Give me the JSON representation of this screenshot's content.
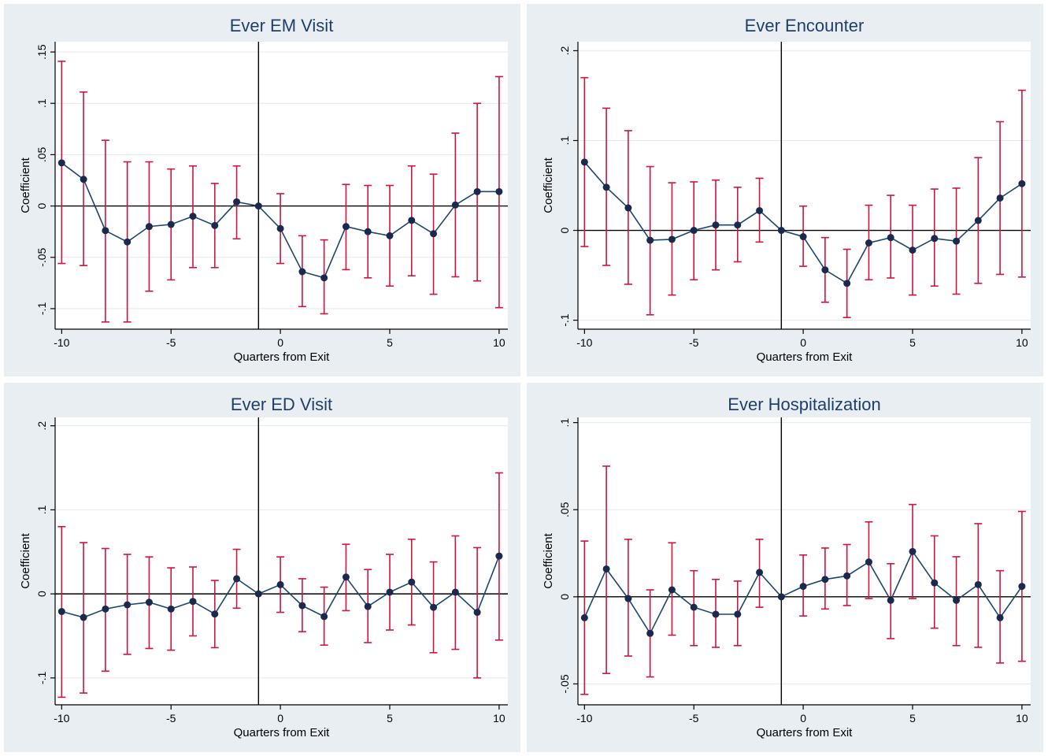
{
  "colors": {
    "panel_background": "#e9eef3",
    "plot_background": "#ffffff",
    "title_color": "#1f3f6b",
    "ci_color": "#d0143f",
    "line_color": "#1a476f",
    "marker_color": "#1a2a4f",
    "grid_color": "#e4e9ee"
  },
  "chart_data": [
    {
      "type": "line",
      "title": "Ever EM Visit",
      "xlabel": "Quarters from Exit",
      "ylabel": "Coefficient",
      "x": [
        -10,
        -9,
        -8,
        -7,
        -6,
        -5,
        -4,
        -3,
        -2,
        -1,
        0,
        1,
        2,
        3,
        4,
        5,
        6,
        7,
        8,
        9,
        10
      ],
      "values": [
        0.042,
        0.026,
        -0.024,
        -0.035,
        -0.02,
        -0.018,
        -0.01,
        -0.019,
        0.004,
        0.0,
        -0.022,
        -0.064,
        -0.07,
        -0.02,
        -0.025,
        -0.029,
        -0.014,
        -0.027,
        0.001,
        0.014,
        0.014
      ],
      "ci_low": [
        -0.056,
        -0.058,
        -0.113,
        -0.113,
        -0.083,
        -0.072,
        -0.06,
        -0.06,
        -0.032,
        0.0,
        -0.056,
        -0.098,
        -0.105,
        -0.062,
        -0.07,
        -0.078,
        -0.068,
        -0.086,
        -0.069,
        -0.073,
        -0.099
      ],
      "ci_high": [
        0.141,
        0.111,
        0.064,
        0.043,
        0.043,
        0.036,
        0.039,
        0.022,
        0.039,
        0.0,
        0.012,
        -0.029,
        -0.033,
        0.021,
        0.02,
        0.02,
        0.039,
        0.031,
        0.071,
        0.1,
        0.126
      ],
      "ylim": [
        -0.12,
        0.16
      ],
      "yticks": [
        0.15,
        0.1,
        0.05,
        0,
        -0.05,
        -0.1
      ],
      "ytick_labels": [
        ".15",
        ".1",
        ".05",
        "0",
        "-.05",
        "-.1"
      ],
      "xticks": [
        -10,
        -5,
        0,
        5,
        10
      ],
      "xtick_labels": [
        "-10",
        "-5",
        "0",
        "5",
        "10"
      ],
      "xlim": [
        -10.3,
        10.4
      ],
      "vline": -1,
      "hline": 0
    },
    {
      "type": "line",
      "title": "Ever Encounter",
      "xlabel": "Quarters from Exit",
      "ylabel": "Coefficient",
      "x": [
        -10,
        -9,
        -8,
        -7,
        -6,
        -5,
        -4,
        -3,
        -2,
        -1,
        0,
        1,
        2,
        3,
        4,
        5,
        6,
        7,
        8,
        9,
        10
      ],
      "values": [
        0.076,
        0.048,
        0.025,
        -0.011,
        -0.01,
        0.0,
        0.006,
        0.006,
        0.022,
        0.0,
        -0.007,
        -0.044,
        -0.059,
        -0.014,
        -0.008,
        -0.022,
        -0.009,
        -0.012,
        0.011,
        0.036,
        0.052
      ],
      "ci_low": [
        -0.018,
        -0.039,
        -0.06,
        -0.094,
        -0.072,
        -0.055,
        -0.044,
        -0.035,
        -0.013,
        0.0,
        -0.04,
        -0.08,
        -0.097,
        -0.055,
        -0.053,
        -0.072,
        -0.062,
        -0.071,
        -0.059,
        -0.049,
        -0.052
      ],
      "ci_high": [
        0.17,
        0.136,
        0.111,
        0.071,
        0.053,
        0.054,
        0.056,
        0.048,
        0.058,
        0.0,
        0.027,
        -0.008,
        -0.021,
        0.028,
        0.039,
        0.028,
        0.046,
        0.047,
        0.081,
        0.121,
        0.156
      ],
      "ylim": [
        -0.11,
        0.21
      ],
      "yticks": [
        0.2,
        0.1,
        0,
        -0.1
      ],
      "ytick_labels": [
        ".2",
        ".1",
        "0",
        "-.1"
      ],
      "xticks": [
        -10,
        -5,
        0,
        5,
        10
      ],
      "xtick_labels": [
        "-10",
        "-5",
        "0",
        "5",
        "10"
      ],
      "xlim": [
        -10.3,
        10.4
      ],
      "vline": -1,
      "hline": 0
    },
    {
      "type": "line",
      "title": "Ever ED Visit",
      "xlabel": "Quarters from Exit",
      "ylabel": "Coefficient",
      "x": [
        -10,
        -9,
        -8,
        -7,
        -6,
        -5,
        -4,
        -3,
        -2,
        -1,
        0,
        1,
        2,
        3,
        4,
        5,
        6,
        7,
        8,
        9,
        10
      ],
      "values": [
        -0.021,
        -0.028,
        -0.018,
        -0.013,
        -0.01,
        -0.018,
        -0.009,
        -0.024,
        0.018,
        0.0,
        0.011,
        -0.014,
        -0.027,
        0.02,
        -0.015,
        0.002,
        0.014,
        -0.016,
        0.002,
        -0.022,
        0.045
      ],
      "ci_low": [
        -0.123,
        -0.118,
        -0.092,
        -0.072,
        -0.065,
        -0.067,
        -0.05,
        -0.064,
        -0.017,
        0.0,
        -0.022,
        -0.045,
        -0.061,
        -0.02,
        -0.058,
        -0.043,
        -0.037,
        -0.07,
        -0.066,
        -0.1,
        -0.055
      ],
      "ci_high": [
        0.08,
        0.061,
        0.054,
        0.047,
        0.044,
        0.031,
        0.032,
        0.016,
        0.053,
        0.0,
        0.044,
        0.018,
        0.008,
        0.059,
        0.029,
        0.047,
        0.065,
        0.038,
        0.069,
        0.055,
        0.144
      ],
      "ylim": [
        -0.132,
        0.21
      ],
      "yticks": [
        0.2,
        0.1,
        0,
        -0.1
      ],
      "ytick_labels": [
        ".2",
        ".1",
        "0",
        "-.1"
      ],
      "xticks": [
        -10,
        -5,
        0,
        5,
        10
      ],
      "xtick_labels": [
        "-10",
        "-5",
        "0",
        "5",
        "10"
      ],
      "xlim": [
        -10.3,
        10.4
      ],
      "vline": -1,
      "hline": 0
    },
    {
      "type": "line",
      "title": "Ever Hospitalization",
      "xlabel": "Quarters from Exit",
      "ylabel": "Coefficient",
      "x": [
        -10,
        -9,
        -8,
        -7,
        -6,
        -5,
        -4,
        -3,
        -2,
        -1,
        0,
        1,
        2,
        3,
        4,
        5,
        6,
        7,
        8,
        9,
        10
      ],
      "values": [
        -0.012,
        0.016,
        -0.001,
        -0.021,
        0.004,
        -0.006,
        -0.01,
        -0.01,
        0.014,
        0.0,
        0.006,
        0.01,
        0.012,
        0.02,
        -0.002,
        0.026,
        0.008,
        -0.002,
        0.007,
        -0.012,
        0.006
      ],
      "ci_low": [
        -0.056,
        -0.044,
        -0.034,
        -0.046,
        -0.022,
        -0.028,
        -0.029,
        -0.028,
        -0.006,
        0.0,
        -0.011,
        -0.007,
        -0.005,
        -0.001,
        -0.024,
        -0.001,
        -0.018,
        -0.028,
        -0.029,
        -0.038,
        -0.037
      ],
      "ci_high": [
        0.032,
        0.075,
        0.033,
        0.004,
        0.031,
        0.015,
        0.01,
        0.009,
        0.033,
        0.0,
        0.024,
        0.028,
        0.03,
        0.043,
        0.019,
        0.053,
        0.035,
        0.023,
        0.042,
        0.015,
        0.049
      ],
      "ylim": [
        -0.062,
        0.103
      ],
      "yticks": [
        0.1,
        0.05,
        0,
        -0.05
      ],
      "ytick_labels": [
        ".1",
        ".05",
        "0",
        "-.05"
      ],
      "xticks": [
        -10,
        -5,
        0,
        5,
        10
      ],
      "xtick_labels": [
        "-10",
        "-5",
        "0",
        "5",
        "10"
      ],
      "xlim": [
        -10.3,
        10.4
      ],
      "vline": -1,
      "hline": 0
    }
  ]
}
